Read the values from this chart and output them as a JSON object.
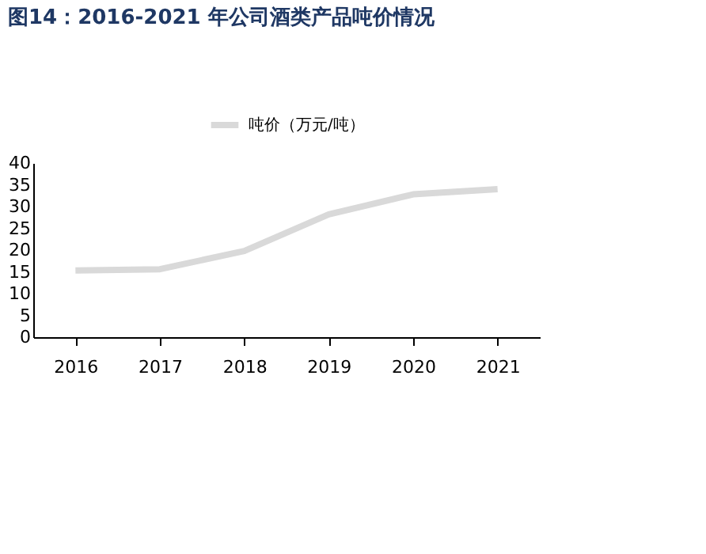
{
  "chart_data": {
    "type": "line",
    "title": "图14：2016-2021 年公司酒类产品吨价情况",
    "categories": [
      "2016",
      "2017",
      "2018",
      "2019",
      "2020",
      "2021"
    ],
    "series": [
      {
        "name": "吨价（万元/吨）",
        "color": "#d9d9d9",
        "values": [
          15.3,
          15.6,
          19.8,
          28.2,
          32.8,
          34.0
        ]
      }
    ],
    "ylim": [
      0,
      40
    ],
    "yticks": [
      0,
      5,
      10,
      15,
      20,
      25,
      30,
      35,
      40
    ],
    "grid": false,
    "legend": "top",
    "marker": "none",
    "line_style": "solid"
  }
}
